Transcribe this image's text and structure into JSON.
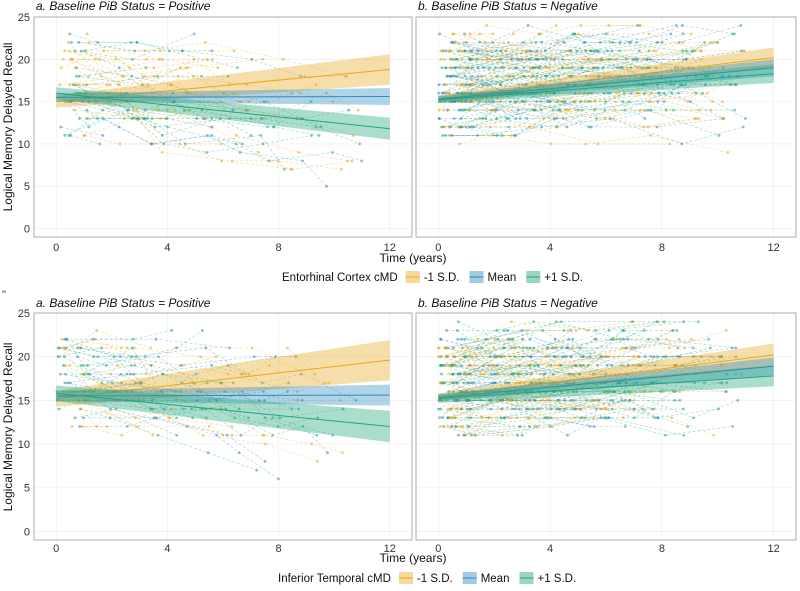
{
  "colors": {
    "neg1": "#E8A820",
    "mean": "#2E8BC0",
    "pos1": "#1FA57A"
  },
  "chart_data": [
    {
      "type": "line",
      "panel_row": "top",
      "ylabel": "Logical Memory Delayed Recall",
      "xlabel": "Time (years)",
      "xlim": [
        -0.8,
        12.8
      ],
      "ylim": [
        -1,
        25
      ],
      "xticks": [
        0,
        4,
        8,
        12
      ],
      "yticks": [
        0,
        5,
        10,
        15,
        20,
        25
      ],
      "legend": {
        "title": "Entorhinal Cortex cMD",
        "labels": [
          "-1 S.D.",
          "Mean",
          "+1 S.D."
        ]
      },
      "facets": [
        {
          "title": "a. Baseline PiB Status = Positive",
          "series": [
            {
              "name": "-1 S.D.",
              "x": [
                0,
                12
              ],
              "y": [
                15.0,
                18.8
              ],
              "lower": [
                14.3,
                17.0
              ],
              "upper": [
                15.7,
                20.6
              ]
            },
            {
              "name": "Mean",
              "x": [
                0,
                12
              ],
              "y": [
                15.5,
                15.6
              ],
              "lower": [
                15.0,
                14.6
              ],
              "upper": [
                16.0,
                16.6
              ]
            },
            {
              "name": "+1 S.D.",
              "x": [
                0,
                12
              ],
              "y": [
                16.0,
                11.8
              ],
              "lower": [
                15.3,
                10.5
              ],
              "upper": [
                16.7,
                13.1
              ]
            }
          ]
        },
        {
          "title": "b. Baseline PiB Status = Negative",
          "series": [
            {
              "name": "-1 S.D.",
              "x": [
                0,
                12
              ],
              "y": [
                15.3,
                20.2
              ],
              "lower": [
                14.9,
                19.0
              ],
              "upper": [
                15.7,
                21.4
              ]
            },
            {
              "name": "Mean",
              "x": [
                0,
                12
              ],
              "y": [
                15.3,
                19.0
              ],
              "lower": [
                14.9,
                18.0
              ],
              "upper": [
                15.7,
                20.0
              ]
            },
            {
              "name": "+1 S.D.",
              "x": [
                0,
                12
              ],
              "y": [
                15.2,
                18.3
              ],
              "lower": [
                14.8,
                17.2
              ],
              "upper": [
                15.6,
                19.4
              ]
            }
          ]
        }
      ]
    },
    {
      "type": "line",
      "panel_row": "bottom",
      "ylabel": "Logical Memory Delayed Recall",
      "xlabel": "Time (years)",
      "xlim": [
        -0.8,
        12.8
      ],
      "ylim": [
        -1,
        25
      ],
      "xticks": [
        0,
        4,
        8,
        12
      ],
      "yticks": [
        0,
        5,
        10,
        15,
        20,
        25
      ],
      "legend": {
        "title": "Inferior Temporal cMD",
        "labels": [
          "-1 S.D.",
          "Mean",
          "+1 S.D."
        ]
      },
      "facets": [
        {
          "title": "a. Baseline PiB Status = Positive",
          "series": [
            {
              "name": "-1 S.D.",
              "x": [
                0,
                12
              ],
              "y": [
                15.2,
                19.6
              ],
              "lower": [
                14.3,
                17.3
              ],
              "upper": [
                16.1,
                21.9
              ]
            },
            {
              "name": "Mean",
              "x": [
                0,
                12
              ],
              "y": [
                15.5,
                15.6
              ],
              "lower": [
                14.9,
                14.4
              ],
              "upper": [
                16.1,
                16.8
              ]
            },
            {
              "name": "+1 S.D.",
              "x": [
                0,
                12
              ],
              "y": [
                15.8,
                12.0
              ],
              "lower": [
                14.9,
                10.2
              ],
              "upper": [
                16.7,
                13.8
              ]
            }
          ]
        },
        {
          "title": "b. Baseline PiB Status = Negative",
          "series": [
            {
              "name": "-1 S.D.",
              "x": [
                0,
                12
              ],
              "y": [
                15.4,
                20.2
              ],
              "lower": [
                15.0,
                18.9
              ],
              "upper": [
                15.8,
                21.5
              ]
            },
            {
              "name": "Mean",
              "x": [
                0,
                12
              ],
              "y": [
                15.3,
                18.9
              ],
              "lower": [
                14.9,
                17.9
              ],
              "upper": [
                15.7,
                19.9
              ]
            },
            {
              "name": "+1 S.D.",
              "x": [
                0,
                12
              ],
              "y": [
                15.2,
                17.8
              ],
              "lower": [
                14.7,
                16.6
              ],
              "upper": [
                15.7,
                19.0
              ]
            }
          ]
        }
      ]
    }
  ]
}
